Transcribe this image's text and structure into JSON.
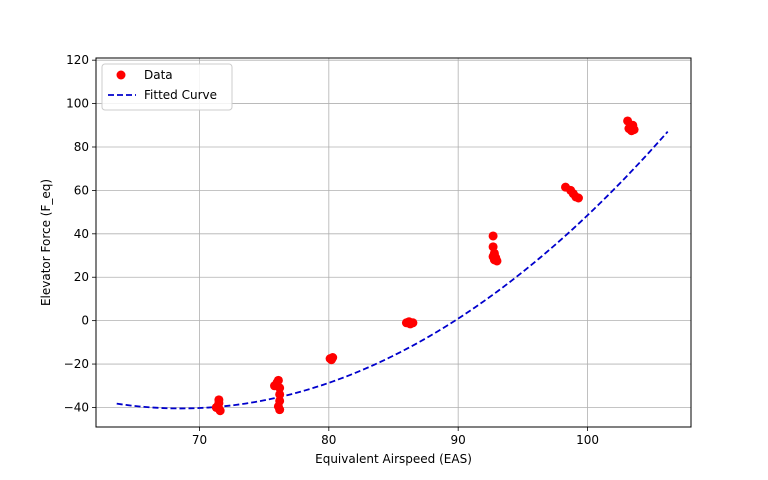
{
  "chart_data": {
    "type": "scatter",
    "xlabel": "Equivalent Airspeed (EAS)",
    "ylabel": "Elevator Force (F_eq)",
    "xlim": [
      62.0,
      108.0
    ],
    "ylim": [
      -49.0,
      121.0
    ],
    "xticks": [
      70,
      80,
      90,
      100
    ],
    "yticks": [
      -40,
      -20,
      0,
      20,
      40,
      60,
      80,
      100,
      120
    ],
    "xtick_labels": [
      "70",
      "80",
      "90",
      "100"
    ],
    "ytick_labels": [
      "−40",
      "−20",
      "0",
      "20",
      "40",
      "60",
      "80",
      "100",
      "120"
    ],
    "grid": true,
    "legend_position": "top-left",
    "legend": [
      "Data",
      "Fitted Curve"
    ],
    "colors": {
      "data": "#ff0000",
      "fit": "#0000cc",
      "grid": "#b0b0b0"
    },
    "series": [
      {
        "kind": "scatter",
        "points": [
          [
            71.5,
            -36.5
          ],
          [
            71.5,
            -38.0
          ],
          [
            71.4,
            -39.5
          ],
          [
            71.5,
            -40.5
          ],
          [
            71.6,
            -41.5
          ],
          [
            71.3,
            -40.0
          ],
          [
            75.8,
            -30.0
          ],
          [
            76.0,
            -28.5
          ],
          [
            76.1,
            -27.5
          ],
          [
            76.2,
            -31.0
          ],
          [
            76.2,
            -34.0
          ],
          [
            76.2,
            -37.0
          ],
          [
            76.1,
            -39.5
          ],
          [
            76.2,
            -41.0
          ],
          [
            80.1,
            -17.5
          ],
          [
            80.3,
            -17.0
          ],
          [
            80.2,
            -18.0
          ],
          [
            86.0,
            -1.0
          ],
          [
            86.3,
            -1.5
          ],
          [
            86.5,
            -1.0
          ],
          [
            86.2,
            -0.5
          ],
          [
            92.7,
            39.0
          ],
          [
            92.7,
            34.0
          ],
          [
            92.8,
            31.0
          ],
          [
            92.7,
            29.5
          ],
          [
            92.8,
            28.0
          ],
          [
            93.0,
            27.5
          ],
          [
            92.9,
            29.0
          ],
          [
            98.3,
            61.5
          ],
          [
            98.7,
            60.0
          ],
          [
            98.9,
            58.5
          ],
          [
            99.1,
            57.0
          ],
          [
            99.3,
            56.5
          ],
          [
            103.1,
            92.0
          ],
          [
            103.2,
            88.5
          ],
          [
            103.4,
            87.5
          ],
          [
            103.6,
            88.0
          ],
          [
            103.5,
            90.0
          ]
        ]
      },
      {
        "kind": "line",
        "style": "dashed",
        "coefficients": [
          0.09,
          -12.34,
          382.54
        ],
        "x_range": [
          63.6,
          106.2
        ]
      }
    ]
  }
}
